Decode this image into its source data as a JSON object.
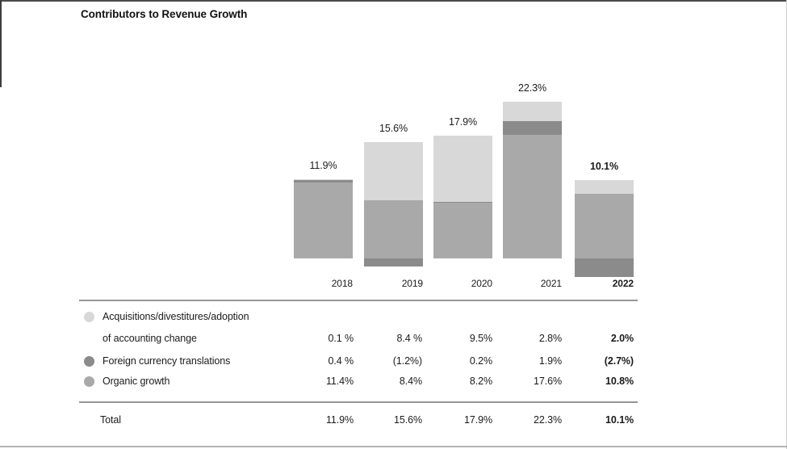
{
  "page": {
    "title": "Contributors to Revenue Growth"
  },
  "chart_data": {
    "type": "bar",
    "stacked": true,
    "title": "Contributors to Revenue Growth",
    "categories": [
      "2018",
      "2019",
      "2020",
      "2021",
      "2022"
    ],
    "series": [
      {
        "name": "Acquisitions/divestitures/adoption of accounting change",
        "key": "acquisitions",
        "color": "#d8d8d8",
        "values": [
          0.1,
          8.4,
          9.5,
          2.8,
          2.0
        ]
      },
      {
        "name": "Foreign currency translations",
        "key": "currency",
        "color": "#8b8b8b",
        "values": [
          0.4,
          -1.2,
          0.2,
          1.9,
          -2.7
        ]
      },
      {
        "name": "Organic growth",
        "key": "organic",
        "color": "#a9a9a9",
        "values": [
          11.4,
          8.4,
          8.2,
          17.6,
          10.8
        ]
      }
    ],
    "totals": [
      11.9,
      15.6,
      17.9,
      22.3,
      10.1
    ],
    "total_labels": [
      "11.9%",
      "15.6%",
      "17.9%",
      "22.3%",
      "10.1%"
    ],
    "ylim": [
      -3,
      23
    ],
    "grid": false,
    "legend_position": "table-below-left"
  },
  "table": {
    "rows": [
      {
        "label_line1": "Acquisitions/divestitures/adoption",
        "label_line2": "of accounting change",
        "bullet_color": "#d8d8d8",
        "values": [
          "0.1 %",
          "8.4 %",
          "9.5%",
          "2.8%",
          "2.0%"
        ]
      },
      {
        "label_line1": "Foreign currency translations",
        "label_line2": "",
        "bullet_color": "#8b8b8b",
        "values": [
          "0.4 %",
          "(1.2%)",
          "0.2%",
          "1.9%",
          "(2.7%)"
        ]
      },
      {
        "label_line1": "Organic growth",
        "label_line2": "",
        "bullet_color": "#a9a9a9",
        "values": [
          "11.4%",
          "8.4%",
          "8.2%",
          "17.6%",
          "10.8%"
        ]
      }
    ],
    "total_row": {
      "label": "Total",
      "values": [
        "11.9%",
        "15.6%",
        "17.9%",
        "22.3%",
        "10.1%"
      ]
    }
  }
}
